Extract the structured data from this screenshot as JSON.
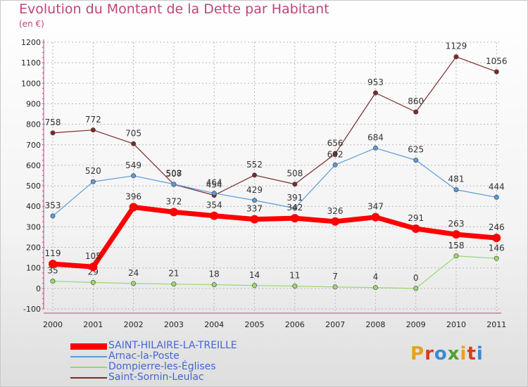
{
  "title": "Evolution du Montant de la Dette par Habitant",
  "unit": "(en €)",
  "logo": {
    "letters": [
      "P",
      "r",
      "o",
      "x",
      "i",
      "t",
      "i"
    ],
    "colors": [
      "#e8a020",
      "#d04020",
      "#3a8ad0",
      "#50a030",
      "#e8a020",
      "#d04020",
      "#3a8ad0"
    ]
  },
  "chart_data": {
    "type": "line",
    "categories": [
      "2000",
      "2001",
      "2002",
      "2003",
      "2004",
      "2005",
      "2006",
      "2007",
      "2008",
      "2009",
      "2010",
      "2011"
    ],
    "ylim": [
      -100,
      1200
    ],
    "yticks": [
      -100,
      0,
      100,
      200,
      300,
      400,
      500,
      600,
      700,
      800,
      900,
      1000,
      1100,
      1200
    ],
    "legend_position": "bottom-left",
    "series": [
      {
        "name": "Saint-Sornin-Leulac",
        "color": "#7a2a2a",
        "width": 1.2,
        "values": [
          758,
          772,
          705,
          507,
          454,
          552,
          508,
          656,
          953,
          860,
          1129,
          1056
        ]
      },
      {
        "name": "Arnac-la-Poste",
        "color": "#5b9ad5",
        "width": 1.2,
        "values": [
          353,
          520,
          549,
          508,
          464,
          429,
          391,
          602,
          684,
          625,
          481,
          444
        ]
      },
      {
        "name": "Dompierre-les-Églises",
        "color": "#9ad86e",
        "width": 1.2,
        "values": [
          35,
          29,
          24,
          21,
          18,
          14,
          11,
          7,
          4,
          0,
          158,
          146
        ]
      },
      {
        "name": "SAINT-HILAIRE-LA-TREILLE",
        "color": "#ff0000",
        "width": 7,
        "values": [
          119,
          105,
          396,
          372,
          354,
          337,
          342,
          326,
          347,
          291,
          263,
          246
        ]
      }
    ],
    "legend_order": [
      "SAINT-HILAIRE-LA-TREILLE",
      "Arnac-la-Poste",
      "Dompierre-les-Églises",
      "Saint-Sornin-Leulac"
    ]
  }
}
